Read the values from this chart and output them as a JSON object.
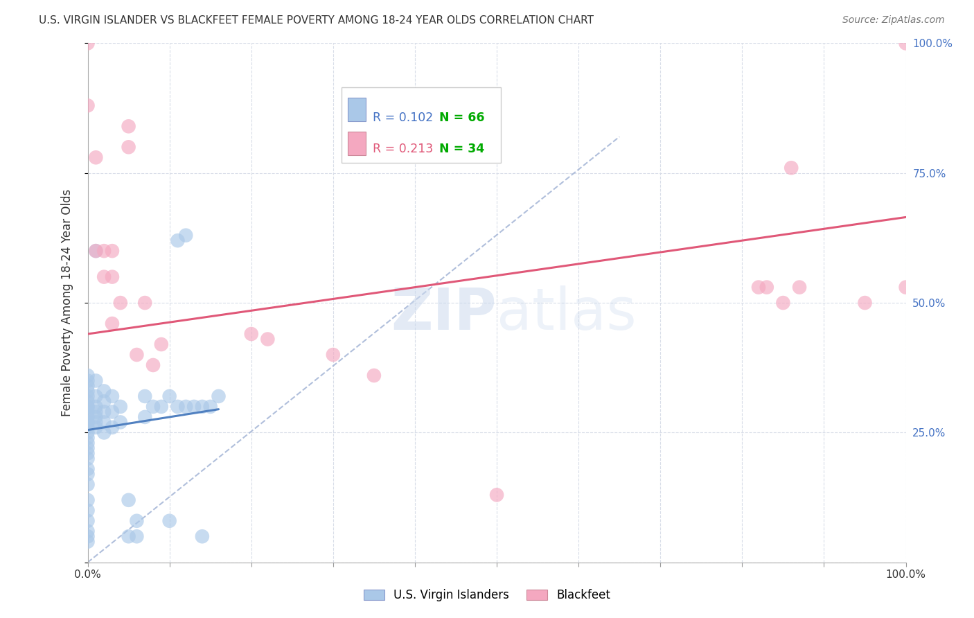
{
  "title": "U.S. VIRGIN ISLANDER VS BLACKFEET FEMALE POVERTY AMONG 18-24 YEAR OLDS CORRELATION CHART",
  "source": "Source: ZipAtlas.com",
  "ylabel": "Female Poverty Among 18-24 Year Olds",
  "watermark": "ZIPatlas",
  "legend_blue_r": "R = 0.102",
  "legend_blue_n": "N = 66",
  "legend_pink_r": "R = 0.213",
  "legend_pink_n": "N = 34",
  "label_blue": "U.S. Virgin Islanders",
  "label_pink": "Blackfeet",
  "blue_scatter_color": "#aac8e8",
  "pink_scatter_color": "#f4a8c0",
  "blue_line_color": "#5080c0",
  "pink_line_color": "#e05878",
  "dashed_line_color": "#a8b8d8",
  "blue_r_color": "#4472c4",
  "blue_n_color": "#00aa00",
  "pink_r_color": "#e05878",
  "pink_n_color": "#00aa00",
  "blue_points_x": [
    0.0,
    0.0,
    0.0,
    0.0,
    0.0,
    0.0,
    0.0,
    0.0,
    0.0,
    0.0,
    0.0,
    0.0,
    0.0,
    0.0,
    0.0,
    0.0,
    0.0,
    0.0,
    0.0,
    0.0,
    0.0,
    0.0,
    0.0,
    0.0,
    0.0,
    0.0,
    0.0,
    0.0,
    0.01,
    0.01,
    0.01,
    0.01,
    0.01,
    0.01,
    0.01,
    0.01,
    0.02,
    0.02,
    0.02,
    0.02,
    0.02,
    0.03,
    0.03,
    0.03,
    0.04,
    0.04,
    0.05,
    0.05,
    0.06,
    0.06,
    0.07,
    0.07,
    0.08,
    0.09,
    0.1,
    0.1,
    0.11,
    0.11,
    0.12,
    0.12,
    0.13,
    0.14,
    0.14,
    0.15,
    0.16
  ],
  "blue_points_y": [
    0.04,
    0.05,
    0.06,
    0.08,
    0.1,
    0.12,
    0.15,
    0.17,
    0.18,
    0.2,
    0.21,
    0.22,
    0.23,
    0.24,
    0.25,
    0.26,
    0.27,
    0.27,
    0.28,
    0.29,
    0.3,
    0.3,
    0.31,
    0.32,
    0.33,
    0.34,
    0.35,
    0.36,
    0.26,
    0.27,
    0.28,
    0.29,
    0.3,
    0.32,
    0.35,
    0.6,
    0.25,
    0.27,
    0.29,
    0.31,
    0.33,
    0.26,
    0.29,
    0.32,
    0.27,
    0.3,
    0.05,
    0.12,
    0.05,
    0.08,
    0.28,
    0.32,
    0.3,
    0.3,
    0.08,
    0.32,
    0.3,
    0.62,
    0.3,
    0.63,
    0.3,
    0.05,
    0.3,
    0.3,
    0.32
  ],
  "pink_points_x": [
    0.0,
    0.0,
    0.01,
    0.01,
    0.02,
    0.02,
    0.03,
    0.03,
    0.03,
    0.04,
    0.05,
    0.05,
    0.06,
    0.07,
    0.08,
    0.09,
    0.2,
    0.22,
    0.3,
    0.35,
    0.5,
    0.82,
    0.83,
    0.85,
    0.86,
    0.87,
    0.95,
    1.0,
    1.0
  ],
  "pink_points_y": [
    0.88,
    1.0,
    0.78,
    0.6,
    0.55,
    0.6,
    0.46,
    0.55,
    0.6,
    0.5,
    0.8,
    0.84,
    0.4,
    0.5,
    0.38,
    0.42,
    0.44,
    0.43,
    0.4,
    0.36,
    0.13,
    0.53,
    0.53,
    0.5,
    0.76,
    0.53,
    0.5,
    0.53,
    1.0
  ],
  "blue_line_x": [
    0.0,
    0.16
  ],
  "blue_line_y": [
    0.255,
    0.295
  ],
  "pink_line_x": [
    0.0,
    1.0
  ],
  "pink_line_y": [
    0.44,
    0.665
  ],
  "dashed_line_x": [
    0.0,
    0.65
  ],
  "dashed_line_y": [
    0.0,
    0.82
  ],
  "xlim": [
    0.0,
    1.0
  ],
  "ylim": [
    0.0,
    1.0
  ],
  "xticks": [
    0.0,
    0.1,
    0.2,
    0.3,
    0.4,
    0.5,
    0.6,
    0.7,
    0.8,
    0.9,
    1.0
  ],
  "yticks": [
    0.0,
    0.25,
    0.5,
    0.75,
    1.0
  ],
  "xticklabels": [
    "0.0%",
    "",
    "",
    "",
    "",
    "",
    "",
    "",
    "",
    "",
    "100.0%"
  ],
  "right_yticklabels": [
    "",
    "25.0%",
    "50.0%",
    "75.0%",
    "100.0%"
  ],
  "grid_color": "#d8dde8",
  "background_color": "#ffffff"
}
